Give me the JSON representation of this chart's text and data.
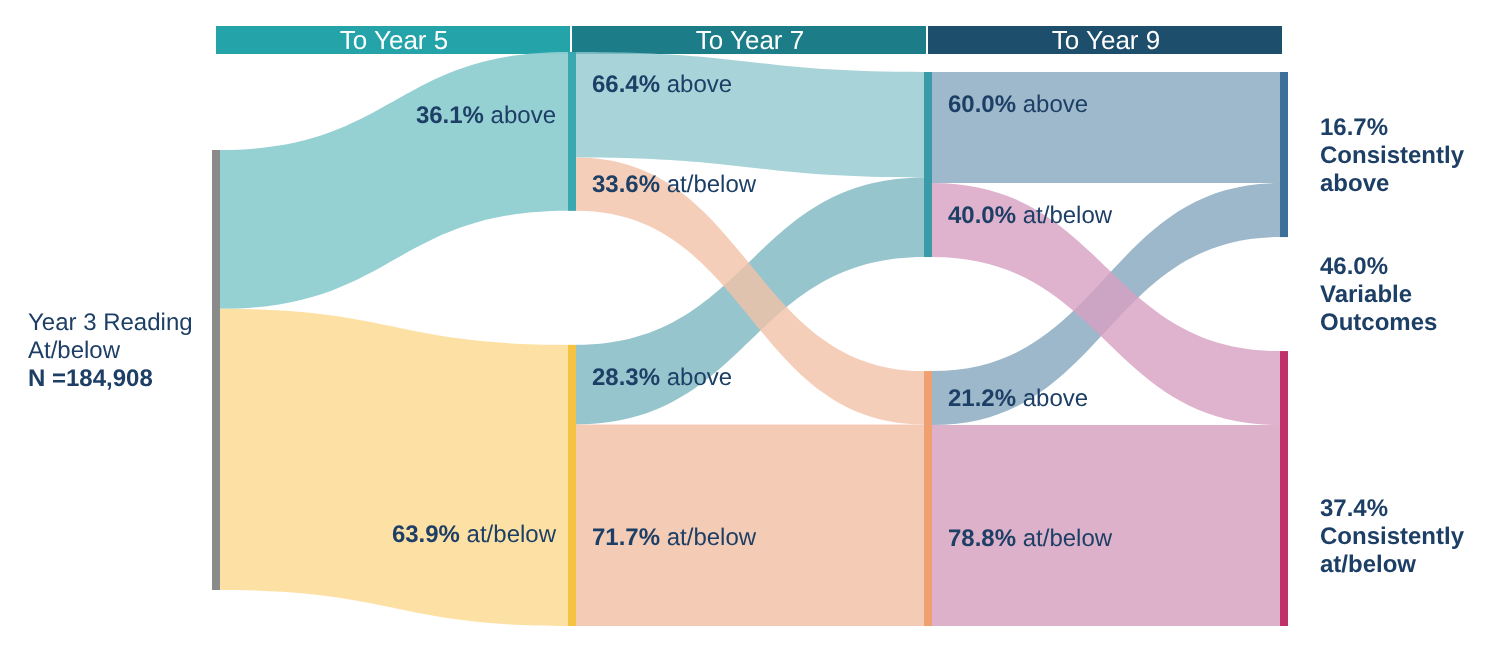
{
  "chart_data": {
    "type": "other",
    "categories": [
      "To Year 5",
      "To Year 7",
      "To Year 9"
    ],
    "series": [
      {
        "name": "above",
        "values": [
          36.1,
          28.3,
          21.2
        ],
        "value_labels": [
          "36.1%",
          "28.3%",
          "21.2%"
        ],
        "colors": [
          "#8fcdd1",
          "#7db6c1",
          "#84a6bd"
        ]
      },
      {
        "name": "at/below",
        "values": [
          63.9,
          71.7,
          78.8
        ],
        "value_labels": [
          "63.9%",
          "71.7%",
          "78.8%"
        ],
        "colors": [
          "#fddf9f",
          "#f1bea2",
          "#d59ebd"
        ]
      },
      {
        "name": "above",
        "values": [
          null,
          66.4,
          60.0
        ],
        "value_labels": [
          null,
          "66.4%",
          "60.0%"
        ],
        "colors": [
          null,
          "#91c8cf",
          "#86a8bf"
        ]
      },
      {
        "name": "at/below",
        "values": [
          null,
          33.6,
          40.0
        ],
        "value_labels": [
          null,
          "33.6%",
          "40.0%"
        ],
        "colors": [
          null,
          "#f2c2a8",
          "#d7a0c0"
        ]
      }
    ],
    "colors": [
      "#24a3a8",
      "#1c7d88",
      "#1d4e6b"
    ],
    "annotations": [
      "Year 3 Reading\nAt/below",
      "N =184,908",
      "16.7%\nConsistently\nabove",
      "46.0%\nVariable\nOutcomes",
      "37.4%\nConsistently\nat/below"
    ]
  }
}
